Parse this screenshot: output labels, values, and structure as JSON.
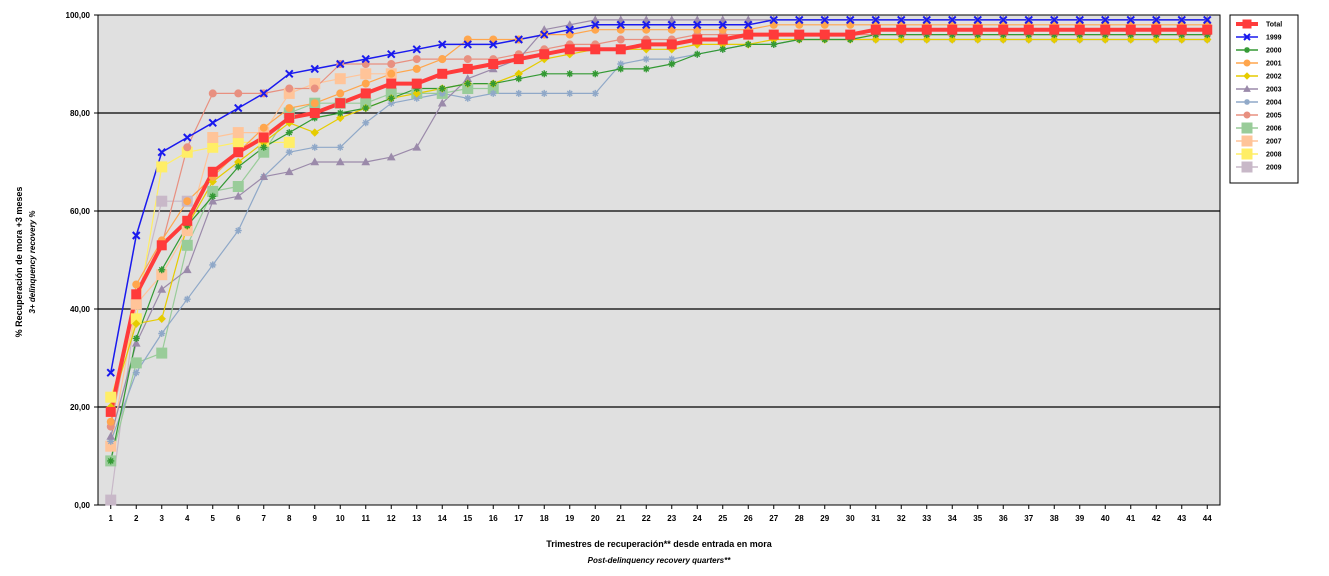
{
  "chart_data": {
    "type": "line",
    "ylabel": "% Recuperación de mora +3 meses",
    "ylabel_sub": "3+ delinquency recovery %",
    "xlabel": "Trimestres de recuperación** desde entrada en mora",
    "xlabel_sub": "Post-delinquency recovery quarters**",
    "ylim": [
      0,
      100
    ],
    "yticks": [
      "0,00",
      "20,00",
      "40,00",
      "60,00",
      "80,00",
      "100,00"
    ],
    "ytick_values": [
      0,
      20,
      40,
      60,
      80,
      100
    ],
    "x": [
      1,
      2,
      3,
      4,
      5,
      6,
      7,
      8,
      9,
      10,
      11,
      12,
      13,
      14,
      15,
      16,
      17,
      18,
      19,
      20,
      21,
      22,
      23,
      24,
      25,
      26,
      27,
      28,
      29,
      30,
      31,
      32,
      33,
      34,
      35,
      36,
      37,
      38,
      39,
      40,
      41,
      42,
      43,
      44
    ],
    "x_tick_labels": [
      "1",
      "2",
      "3",
      "4",
      "5",
      "6",
      "7",
      "8",
      "9",
      "10",
      "11",
      "12",
      "13",
      "14",
      "15",
      "16",
      "17",
      "18",
      "19",
      "20",
      "21",
      "22",
      "23",
      "24",
      "25",
      "26",
      "27",
      "28",
      "29",
      "30",
      "31",
      "32",
      "33",
      "34",
      "35",
      "36",
      "37",
      "38",
      "39",
      "40",
      "41",
      "42",
      "43",
      "44"
    ],
    "grid": true,
    "legend_position": "right",
    "plot_background": "#e0e0e0",
    "series": [
      {
        "name": "Total",
        "color": "#ff3b3b",
        "marker": "square",
        "width": 4,
        "values": [
          19,
          43,
          53,
          58,
          68,
          72,
          75,
          79,
          80,
          82,
          84,
          86,
          86,
          88,
          89,
          90,
          91,
          92,
          93,
          93,
          93,
          94,
          94,
          95,
          95,
          96,
          96,
          96,
          96,
          96,
          97,
          97,
          97,
          97,
          97,
          97,
          97,
          97,
          97,
          97,
          97,
          97,
          97,
          97
        ]
      },
      {
        "name": "1999",
        "color": "#1a1aee",
        "marker": "x",
        "width": 1.5,
        "values": [
          27,
          55,
          72,
          75,
          78,
          81,
          84,
          88,
          89,
          90,
          91,
          92,
          93,
          94,
          94,
          94,
          95,
          96,
          97,
          98,
          98,
          98,
          98,
          98,
          98,
          98,
          99,
          99,
          99,
          99,
          99,
          99,
          99,
          99,
          99,
          99,
          99,
          99,
          99,
          99,
          99,
          99,
          99,
          99
        ]
      },
      {
        "name": "2000",
        "color": "#339933",
        "marker": "star",
        "width": 1.2,
        "values": [
          9,
          34,
          48,
          57,
          63,
          69,
          73,
          76,
          79,
          80,
          81,
          83,
          85,
          85,
          86,
          86,
          87,
          88,
          88,
          88,
          89,
          89,
          90,
          92,
          93,
          94,
          94,
          95,
          95,
          95,
          96,
          96,
          96,
          96,
          96,
          96,
          96,
          96,
          96,
          96,
          96,
          96,
          96,
          96
        ]
      },
      {
        "name": "2001",
        "color": "#ffa64d",
        "marker": "circle",
        "width": 1.2,
        "values": [
          17,
          45,
          54,
          62,
          67,
          72,
          77,
          81,
          82,
          84,
          86,
          88,
          89,
          91,
          95,
          95,
          95,
          96,
          96,
          97,
          97,
          97,
          97,
          97,
          97,
          97,
          98,
          98,
          98,
          98,
          98,
          98,
          98,
          98,
          98,
          98,
          98,
          98,
          98,
          98,
          98,
          98,
          98,
          98
        ]
      },
      {
        "name": "2002",
        "color": "#e6cc00",
        "marker": "diamond",
        "width": 1.2,
        "values": [
          20,
          37,
          38,
          57,
          66,
          70,
          74,
          78,
          76,
          79,
          81,
          83,
          84,
          85,
          86,
          86,
          88,
          91,
          92,
          93,
          93,
          93,
          93,
          94,
          94,
          94,
          95,
          95,
          95,
          95,
          95,
          95,
          95,
          95,
          95,
          95,
          95,
          95,
          95,
          95,
          95,
          95,
          95,
          95
        ]
      },
      {
        "name": "2003",
        "color": "#9b8aaa",
        "marker": "triangle",
        "width": 1.2,
        "values": [
          14,
          33,
          44,
          48,
          62,
          63,
          67,
          68,
          70,
          70,
          70,
          71,
          73,
          82,
          87,
          89,
          91,
          97,
          98,
          99,
          99,
          99,
          99,
          99,
          99,
          99,
          99,
          99,
          99,
          99,
          99,
          99,
          99,
          99,
          99,
          99,
          99,
          99,
          99,
          99,
          99,
          99,
          99,
          99
        ]
      },
      {
        "name": "2004",
        "color": "#8fa8c8",
        "marker": "star",
        "width": 1.2,
        "values": [
          13,
          27,
          35,
          42,
          49,
          56,
          67,
          72,
          73,
          73,
          78,
          82,
          83,
          84,
          83,
          84,
          84,
          84,
          84,
          84,
          90,
          91,
          91,
          92,
          93,
          94,
          94,
          95,
          95,
          95,
          95,
          95,
          95,
          95,
          95,
          95,
          95,
          95,
          95,
          95,
          95,
          95,
          95,
          95
        ]
      },
      {
        "name": "2005",
        "color": "#e89080",
        "marker": "circle",
        "width": 1.2,
        "values": [
          16,
          43,
          53,
          73,
          84,
          84,
          84,
          85,
          85,
          90,
          90,
          90,
          91,
          91,
          91,
          91,
          92,
          93,
          94,
          94,
          95,
          95,
          95,
          96,
          96,
          96,
          96,
          96,
          96,
          96,
          96,
          96,
          96,
          96,
          96,
          96,
          96,
          96,
          96,
          96,
          96,
          96,
          96,
          96
        ]
      },
      {
        "name": "2006",
        "color": "#99cc99",
        "marker": "square",
        "width": 1.2,
        "values": [
          9,
          29,
          31,
          53,
          64,
          65,
          72,
          80,
          82,
          82,
          82,
          84,
          84,
          84,
          85,
          85,
          null,
          null,
          null,
          null,
          null,
          null,
          null,
          null,
          null,
          null,
          null,
          null,
          null,
          null,
          null,
          null,
          null,
          null,
          null,
          null,
          null,
          null,
          null,
          null,
          null,
          null,
          null,
          null
        ]
      },
      {
        "name": "2007",
        "color": "#ffc499",
        "marker": "square",
        "width": 1.2,
        "values": [
          12,
          41,
          47,
          56,
          75,
          76,
          76,
          84,
          86,
          87,
          88,
          88,
          null,
          null,
          null,
          null,
          null,
          null,
          null,
          null,
          null,
          null,
          null,
          null,
          null,
          null,
          null,
          null,
          null,
          null,
          null,
          null,
          null,
          null,
          null,
          null,
          null,
          null,
          null,
          null,
          null,
          null,
          null,
          null
        ]
      },
      {
        "name": "2008",
        "color": "#ffee66",
        "marker": "square",
        "width": 1.2,
        "values": [
          22,
          38,
          69,
          72,
          73,
          74,
          74,
          74,
          null,
          null,
          null,
          null,
          null,
          null,
          null,
          null,
          null,
          null,
          null,
          null,
          null,
          null,
          null,
          null,
          null,
          null,
          null,
          null,
          null,
          null,
          null,
          null,
          null,
          null,
          null,
          null,
          null,
          null,
          null,
          null,
          null,
          null,
          null,
          null
        ]
      },
      {
        "name": "2009",
        "color": "#c8b8c8",
        "marker": "square",
        "width": 1.2,
        "values": [
          1,
          41,
          62,
          62,
          null,
          null,
          null,
          null,
          null,
          null,
          null,
          null,
          null,
          null,
          null,
          null,
          null,
          null,
          null,
          null,
          null,
          null,
          null,
          null,
          null,
          null,
          null,
          null,
          null,
          null,
          null,
          null,
          null,
          null,
          null,
          null,
          null,
          null,
          null,
          null,
          null,
          null,
          null,
          null
        ]
      }
    ]
  }
}
